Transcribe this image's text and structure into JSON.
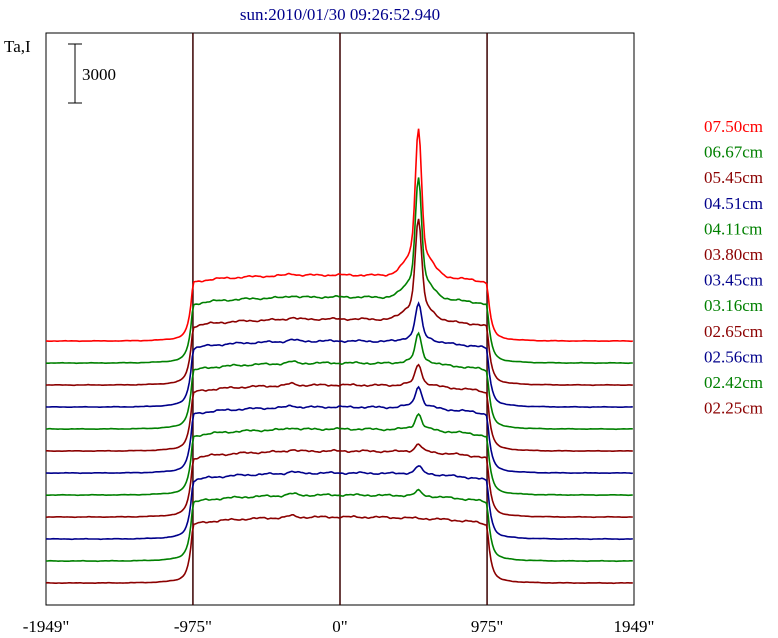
{
  "chart_data": {
    "type": "line",
    "title": "sun:2010/01/30 09:26:52.940",
    "ylabel": "Ta,I",
    "scale_bar_label": "3000",
    "xlim": [
      -1949,
      1949
    ],
    "x_ticks": [
      {
        "value": -1949,
        "label": "-1949\""
      },
      {
        "value": -975,
        "label": "-975\""
      },
      {
        "value": 0,
        "label": "0\""
      },
      {
        "value": 975,
        "label": "975\""
      },
      {
        "value": 1949,
        "label": "1949\""
      }
    ],
    "vertical_reference_lines": [
      -975,
      0,
      975
    ],
    "limb_radius": 975,
    "offset_step": 1000,
    "scale_bar_value": 3000,
    "ylim": [
      -1000,
      25000
    ],
    "grid": false,
    "legend_placement": "right",
    "series": [
      {
        "name": "07.50cm",
        "color": "#ff0000",
        "baseline": 11000,
        "disk_level": 3000,
        "peak": 5400
      },
      {
        "name": "06.67cm",
        "color": "#008000",
        "baseline": 10000,
        "disk_level": 3000,
        "peak": 4400
      },
      {
        "name": "05.45cm",
        "color": "#8b0000",
        "baseline": 9000,
        "disk_level": 3000,
        "peak": 3700
      },
      {
        "name": "04.51cm",
        "color": "#00008b",
        "baseline": 8000,
        "disk_level": 3000,
        "peak": 1400
      },
      {
        "name": "04.11cm",
        "color": "#008000",
        "baseline": 7000,
        "disk_level": 3000,
        "peak": 1100
      },
      {
        "name": "03.80cm",
        "color": "#8b0000",
        "baseline": 6000,
        "disk_level": 3000,
        "peak": 800
      },
      {
        "name": "03.45cm",
        "color": "#00008b",
        "baseline": 5000,
        "disk_level": 3000,
        "peak": 800
      },
      {
        "name": "03.16cm",
        "color": "#008000",
        "baseline": 4000,
        "disk_level": 3000,
        "peak": 600
      },
      {
        "name": "02.65cm",
        "color": "#8b0000",
        "baseline": 3000,
        "disk_level": 3000,
        "peak": 300
      },
      {
        "name": "02.56cm",
        "color": "#00008b",
        "baseline": 2000,
        "disk_level": 3000,
        "peak": 300
      },
      {
        "name": "02.42cm",
        "color": "#008000",
        "baseline": 1000,
        "disk_level": 3000,
        "peak": 200
      },
      {
        "name": "02.25cm",
        "color": "#8b0000",
        "baseline": 0,
        "disk_level": 3000,
        "peak": 0
      }
    ]
  }
}
